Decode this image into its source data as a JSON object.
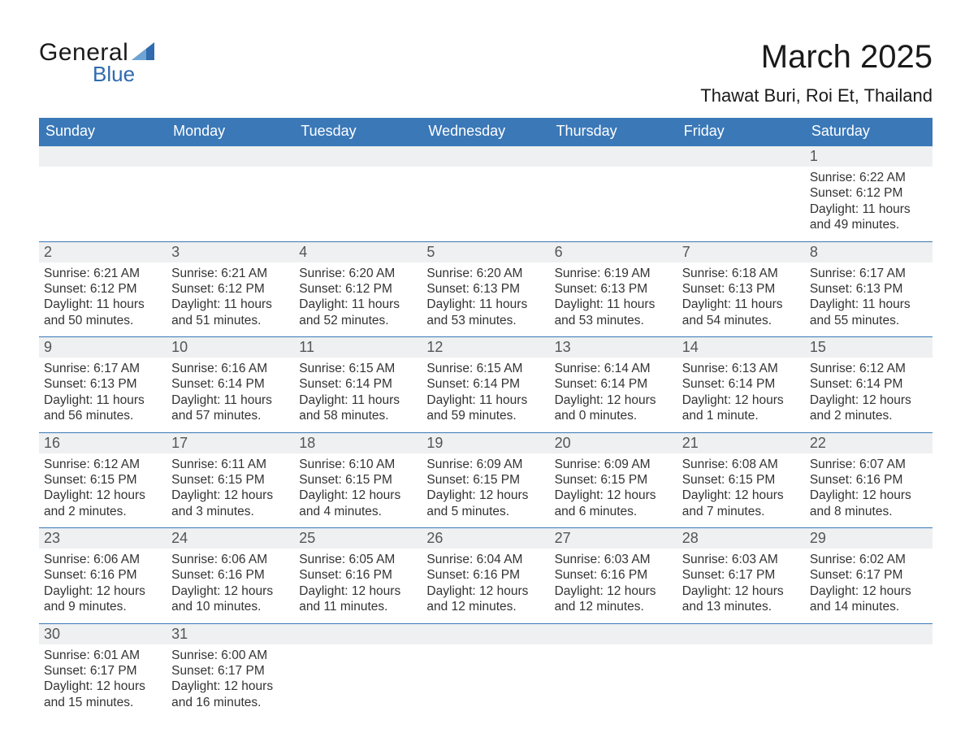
{
  "logo": {
    "text1": "General",
    "text2": "Blue",
    "brand_color": "#2f6bad"
  },
  "header": {
    "month_title": "March 2025",
    "location": "Thawat Buri, Roi Et, Thailand"
  },
  "theme": {
    "header_bg": "#3a78b8",
    "header_text": "#ffffff",
    "daynum_bg": "#eef0f1",
    "text_color": "#333333",
    "border_color": "#3a78b8",
    "page_bg": "#ffffff",
    "title_fontsize": 40,
    "location_fontsize": 22,
    "th_fontsize": 18,
    "daynum_fontsize": 18,
    "detail_fontsize": 15.5
  },
  "weekdays": [
    "Sunday",
    "Monday",
    "Tuesday",
    "Wednesday",
    "Thursday",
    "Friday",
    "Saturday"
  ],
  "weeks": [
    [
      null,
      null,
      null,
      null,
      null,
      null,
      {
        "n": "1",
        "sunrise": "Sunrise: 6:22 AM",
        "sunset": "Sunset: 6:12 PM",
        "daylight": "Daylight: 11 hours and 49 minutes."
      }
    ],
    [
      {
        "n": "2",
        "sunrise": "Sunrise: 6:21 AM",
        "sunset": "Sunset: 6:12 PM",
        "daylight": "Daylight: 11 hours and 50 minutes."
      },
      {
        "n": "3",
        "sunrise": "Sunrise: 6:21 AM",
        "sunset": "Sunset: 6:12 PM",
        "daylight": "Daylight: 11 hours and 51 minutes."
      },
      {
        "n": "4",
        "sunrise": "Sunrise: 6:20 AM",
        "sunset": "Sunset: 6:12 PM",
        "daylight": "Daylight: 11 hours and 52 minutes."
      },
      {
        "n": "5",
        "sunrise": "Sunrise: 6:20 AM",
        "sunset": "Sunset: 6:13 PM",
        "daylight": "Daylight: 11 hours and 53 minutes."
      },
      {
        "n": "6",
        "sunrise": "Sunrise: 6:19 AM",
        "sunset": "Sunset: 6:13 PM",
        "daylight": "Daylight: 11 hours and 53 minutes."
      },
      {
        "n": "7",
        "sunrise": "Sunrise: 6:18 AM",
        "sunset": "Sunset: 6:13 PM",
        "daylight": "Daylight: 11 hours and 54 minutes."
      },
      {
        "n": "8",
        "sunrise": "Sunrise: 6:17 AM",
        "sunset": "Sunset: 6:13 PM",
        "daylight": "Daylight: 11 hours and 55 minutes."
      }
    ],
    [
      {
        "n": "9",
        "sunrise": "Sunrise: 6:17 AM",
        "sunset": "Sunset: 6:13 PM",
        "daylight": "Daylight: 11 hours and 56 minutes."
      },
      {
        "n": "10",
        "sunrise": "Sunrise: 6:16 AM",
        "sunset": "Sunset: 6:14 PM",
        "daylight": "Daylight: 11 hours and 57 minutes."
      },
      {
        "n": "11",
        "sunrise": "Sunrise: 6:15 AM",
        "sunset": "Sunset: 6:14 PM",
        "daylight": "Daylight: 11 hours and 58 minutes."
      },
      {
        "n": "12",
        "sunrise": "Sunrise: 6:15 AM",
        "sunset": "Sunset: 6:14 PM",
        "daylight": "Daylight: 11 hours and 59 minutes."
      },
      {
        "n": "13",
        "sunrise": "Sunrise: 6:14 AM",
        "sunset": "Sunset: 6:14 PM",
        "daylight": "Daylight: 12 hours and 0 minutes."
      },
      {
        "n": "14",
        "sunrise": "Sunrise: 6:13 AM",
        "sunset": "Sunset: 6:14 PM",
        "daylight": "Daylight: 12 hours and 1 minute."
      },
      {
        "n": "15",
        "sunrise": "Sunrise: 6:12 AM",
        "sunset": "Sunset: 6:14 PM",
        "daylight": "Daylight: 12 hours and 2 minutes."
      }
    ],
    [
      {
        "n": "16",
        "sunrise": "Sunrise: 6:12 AM",
        "sunset": "Sunset: 6:15 PM",
        "daylight": "Daylight: 12 hours and 2 minutes."
      },
      {
        "n": "17",
        "sunrise": "Sunrise: 6:11 AM",
        "sunset": "Sunset: 6:15 PM",
        "daylight": "Daylight: 12 hours and 3 minutes."
      },
      {
        "n": "18",
        "sunrise": "Sunrise: 6:10 AM",
        "sunset": "Sunset: 6:15 PM",
        "daylight": "Daylight: 12 hours and 4 minutes."
      },
      {
        "n": "19",
        "sunrise": "Sunrise: 6:09 AM",
        "sunset": "Sunset: 6:15 PM",
        "daylight": "Daylight: 12 hours and 5 minutes."
      },
      {
        "n": "20",
        "sunrise": "Sunrise: 6:09 AM",
        "sunset": "Sunset: 6:15 PM",
        "daylight": "Daylight: 12 hours and 6 minutes."
      },
      {
        "n": "21",
        "sunrise": "Sunrise: 6:08 AM",
        "sunset": "Sunset: 6:15 PM",
        "daylight": "Daylight: 12 hours and 7 minutes."
      },
      {
        "n": "22",
        "sunrise": "Sunrise: 6:07 AM",
        "sunset": "Sunset: 6:16 PM",
        "daylight": "Daylight: 12 hours and 8 minutes."
      }
    ],
    [
      {
        "n": "23",
        "sunrise": "Sunrise: 6:06 AM",
        "sunset": "Sunset: 6:16 PM",
        "daylight": "Daylight: 12 hours and 9 minutes."
      },
      {
        "n": "24",
        "sunrise": "Sunrise: 6:06 AM",
        "sunset": "Sunset: 6:16 PM",
        "daylight": "Daylight: 12 hours and 10 minutes."
      },
      {
        "n": "25",
        "sunrise": "Sunrise: 6:05 AM",
        "sunset": "Sunset: 6:16 PM",
        "daylight": "Daylight: 12 hours and 11 minutes."
      },
      {
        "n": "26",
        "sunrise": "Sunrise: 6:04 AM",
        "sunset": "Sunset: 6:16 PM",
        "daylight": "Daylight: 12 hours and 12 minutes."
      },
      {
        "n": "27",
        "sunrise": "Sunrise: 6:03 AM",
        "sunset": "Sunset: 6:16 PM",
        "daylight": "Daylight: 12 hours and 12 minutes."
      },
      {
        "n": "28",
        "sunrise": "Sunrise: 6:03 AM",
        "sunset": "Sunset: 6:17 PM",
        "daylight": "Daylight: 12 hours and 13 minutes."
      },
      {
        "n": "29",
        "sunrise": "Sunrise: 6:02 AM",
        "sunset": "Sunset: 6:17 PM",
        "daylight": "Daylight: 12 hours and 14 minutes."
      }
    ],
    [
      {
        "n": "30",
        "sunrise": "Sunrise: 6:01 AM",
        "sunset": "Sunset: 6:17 PM",
        "daylight": "Daylight: 12 hours and 15 minutes."
      },
      {
        "n": "31",
        "sunrise": "Sunrise: 6:00 AM",
        "sunset": "Sunset: 6:17 PM",
        "daylight": "Daylight: 12 hours and 16 minutes."
      },
      null,
      null,
      null,
      null,
      null
    ]
  ]
}
